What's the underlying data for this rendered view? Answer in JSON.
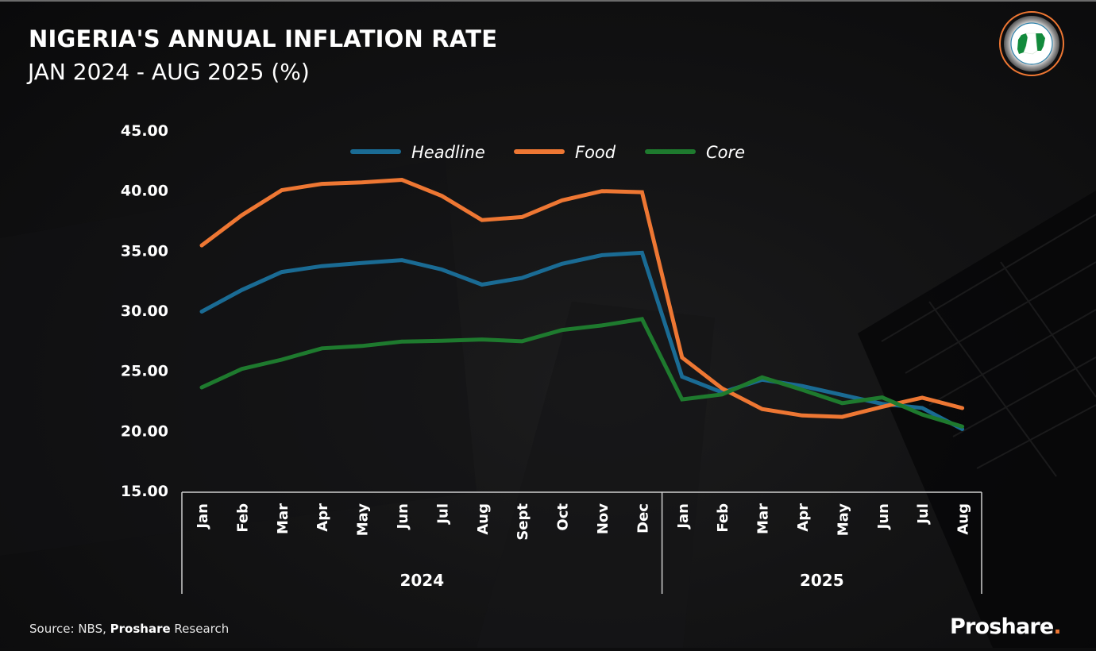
{
  "header": {
    "title": "NIGERIA'S ANNUAL INFLATION RATE",
    "subtitle": "JAN 2024 - AUG 2025 (%)"
  },
  "logo": {
    "icon": "nigeria-map-badge-icon",
    "colors": {
      "ring": "#ee7733",
      "map_green": "#128a3c"
    }
  },
  "footer": {
    "source_prefix": "Source: NBS, ",
    "source_bold": "Proshare",
    "source_suffix": " Research",
    "brand_name": "Proshare",
    "brand_dot": ".",
    "brand_dot_color": "#ee7733"
  },
  "chart_data": {
    "type": "line",
    "title": "NIGERIA'S ANNUAL INFLATION RATE",
    "subtitle": "JAN 2024 - AUG 2025 (%)",
    "xlabel": "",
    "ylabel": "",
    "ylim": [
      15,
      45
    ],
    "yticks": [
      "15.00",
      "20.00",
      "25.00",
      "30.00",
      "35.00",
      "40.00",
      "45.00"
    ],
    "ytick_values": [
      15,
      20,
      25,
      30,
      35,
      40,
      45
    ],
    "grid": false,
    "legend_position": "top-center",
    "categories": [
      "Jan",
      "Feb",
      "Mar",
      "Apr",
      "May",
      "Jun",
      "Jul",
      "Aug",
      "Sept",
      "Oct",
      "Nov",
      "Dec",
      "Jan",
      "Feb",
      "Mar",
      "Apr",
      "May",
      "Jun",
      "Jul",
      "Aug"
    ],
    "groups": [
      {
        "label": "2024",
        "count": 12
      },
      {
        "label": "2025",
        "count": 8
      }
    ],
    "series": [
      {
        "name": "Headline",
        "color": "#1a6b94",
        "values": [
          29.9,
          31.7,
          33.2,
          33.69,
          33.95,
          34.19,
          33.4,
          32.15,
          32.7,
          33.88,
          34.6,
          34.8,
          24.48,
          23.18,
          24.23,
          23.71,
          22.97,
          22.22,
          21.88,
          20.12
        ]
      },
      {
        "name": "Food",
        "color": "#ee7733",
        "values": [
          35.41,
          37.92,
          40.01,
          40.53,
          40.66,
          40.87,
          39.53,
          37.52,
          37.77,
          39.16,
          39.93,
          39.84,
          26.08,
          23.51,
          21.79,
          21.26,
          21.14,
          21.97,
          22.74,
          21.87
        ]
      },
      {
        "name": "Core",
        "color": "#1e7a2e",
        "values": [
          23.59,
          25.13,
          25.9,
          26.84,
          27.04,
          27.4,
          27.47,
          27.58,
          27.43,
          28.37,
          28.75,
          29.28,
          22.59,
          23.01,
          24.43,
          23.39,
          22.28,
          22.76,
          21.33,
          20.33
        ]
      }
    ]
  }
}
